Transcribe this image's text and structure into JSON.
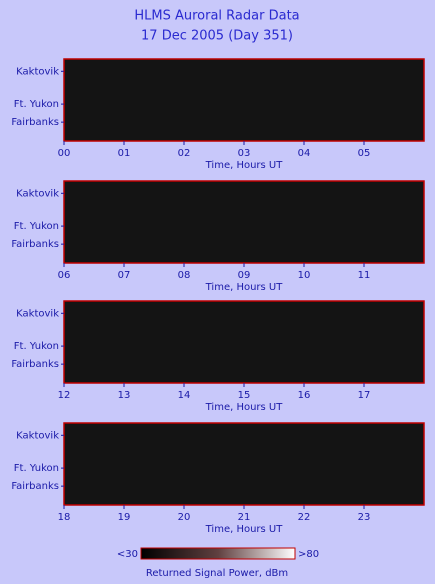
{
  "title": "HLMS Auroral Radar Data",
  "subtitle": "17 Dec 2005 (Day 351)",
  "chart_data": [
    {
      "type": "heatmap",
      "categories": [
        "Kaktovik",
        "Ft. Yukon",
        "Fairbanks"
      ],
      "xlim": [
        0,
        6
      ],
      "xticks": [
        {
          "value": 0,
          "label": "00"
        },
        {
          "value": 1,
          "label": "01"
        },
        {
          "value": 2,
          "label": "02"
        },
        {
          "value": 3,
          "label": "03"
        },
        {
          "value": 4,
          "label": "04"
        },
        {
          "value": 5,
          "label": "05"
        }
      ],
      "xlabel": "Time, Hours UT"
    },
    {
      "type": "heatmap",
      "categories": [
        "Kaktovik",
        "Ft. Yukon",
        "Fairbanks"
      ],
      "xlim": [
        6,
        12
      ],
      "xticks": [
        {
          "value": 6,
          "label": "06"
        },
        {
          "value": 7,
          "label": "07"
        },
        {
          "value": 8,
          "label": "08"
        },
        {
          "value": 9,
          "label": "09"
        },
        10,
        11
      ],
      "xlabel": "Time, Hours UT"
    },
    {
      "type": "heatmap",
      "categories": [
        "Kaktovik",
        "Ft. Yukon",
        "Fairbanks"
      ],
      "xlim": [
        12,
        18
      ],
      "xticks": [
        12,
        13,
        14,
        15,
        16,
        17
      ],
      "xlabel": "Time, Hours UT"
    },
    {
      "type": "heatmap",
      "categories": [
        "Kaktovik",
        "Ft. Yukon",
        "Fairbanks"
      ],
      "xlim": [
        18,
        24
      ],
      "xticks": [
        18,
        19,
        20,
        21,
        22,
        23
      ],
      "xlabel": "Time, Hours UT"
    }
  ],
  "colorbar": {
    "min_label": "<30",
    "max_label": ">80",
    "label": "Returned Signal Power, dBm"
  }
}
